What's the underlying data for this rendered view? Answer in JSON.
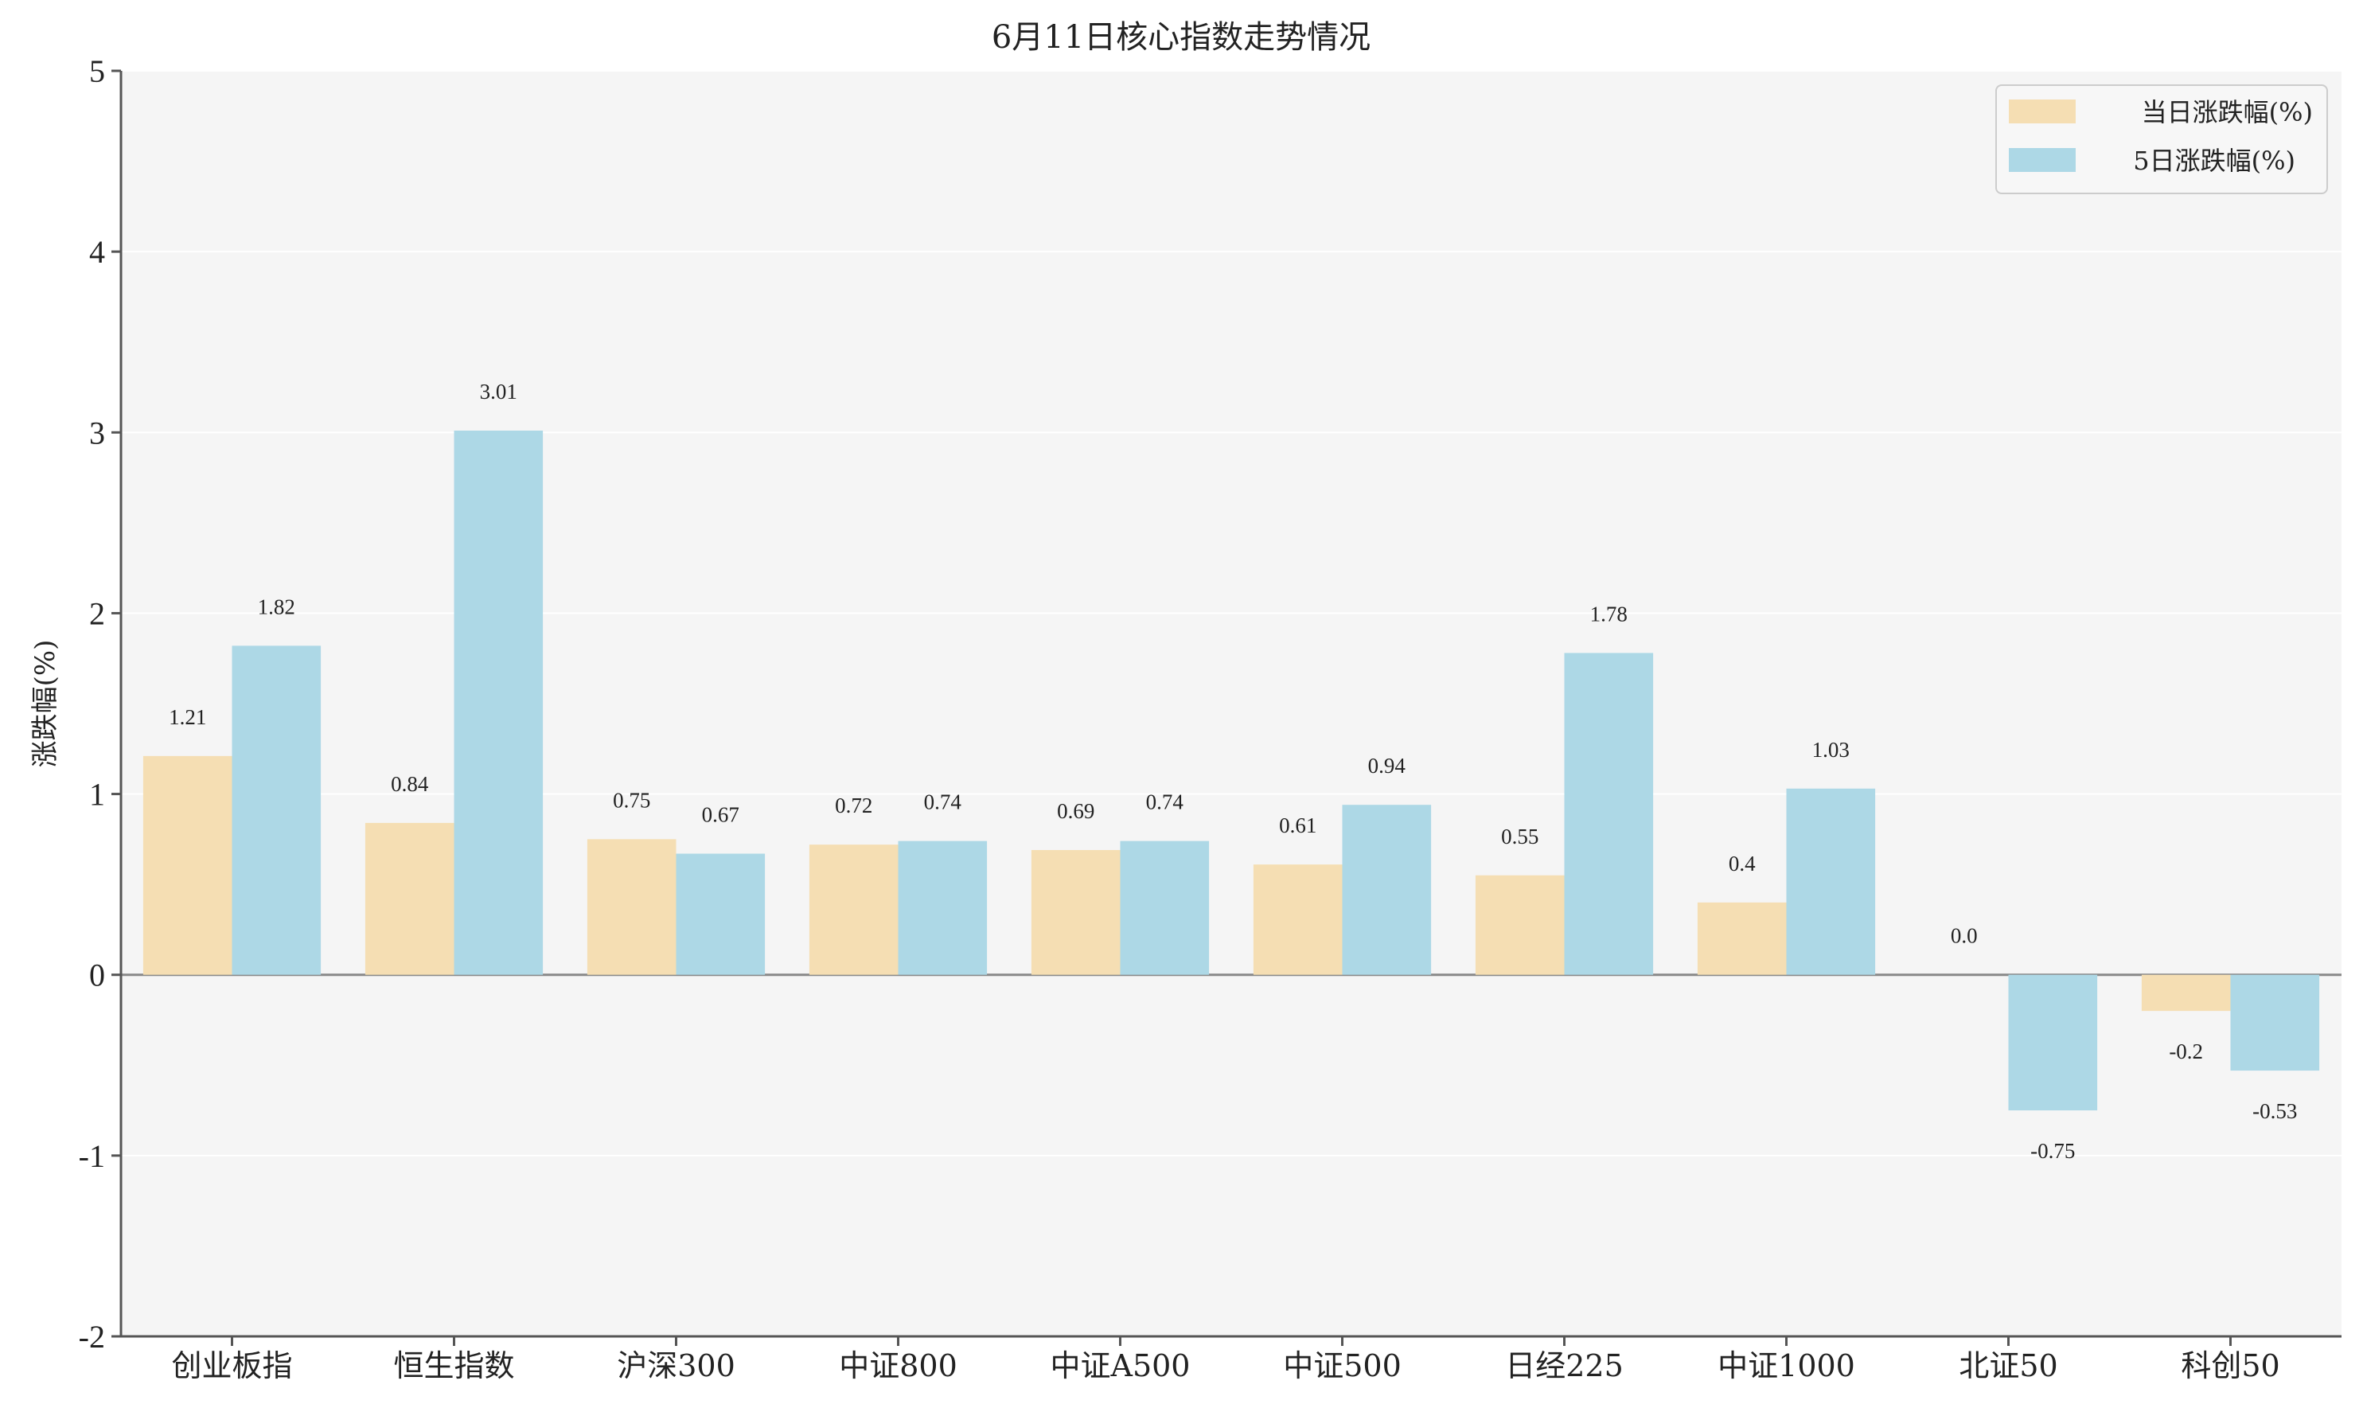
{
  "chart_data": {
    "type": "bar",
    "title": "6月11日核心指数走势情况",
    "ylabel": "涨跌幅(%)",
    "xlabel": "",
    "ylim": [
      -2,
      5
    ],
    "yticks": [
      "-2",
      "-1",
      "0",
      "1",
      "2",
      "3",
      "4",
      "5"
    ],
    "grid": true,
    "legend_position": "top-right",
    "categories": [
      "创业板指",
      "恒生指数",
      "沪深300",
      "中证800",
      "中证A500",
      "中证500",
      "日经225",
      "中证1000",
      "北证50",
      "科创50"
    ],
    "series": [
      {
        "name": "当日涨跌幅(%)",
        "color": "#f5deb3",
        "values": [
          1.21,
          0.84,
          0.75,
          0.72,
          0.69,
          0.61,
          0.55,
          0.4,
          0.0,
          -0.2
        ],
        "labels": [
          "1.21",
          "0.84",
          "0.75",
          "0.72",
          "0.69",
          "0.61",
          "0.55",
          "0.4",
          "0.0",
          "-0.2"
        ]
      },
      {
        "name": "5日涨跌幅(%)",
        "color": "#add8e6",
        "values": [
          1.82,
          3.01,
          0.67,
          0.74,
          0.74,
          0.94,
          1.78,
          1.03,
          -0.75,
          -0.53
        ],
        "labels": [
          "1.82",
          "3.01",
          "0.67",
          "0.74",
          "0.74",
          "0.94",
          "1.78",
          "1.03",
          "-0.75",
          "-0.53"
        ]
      }
    ],
    "colors": {
      "plot_background": "#f5f5f5",
      "axis": "#555555",
      "zero_line": "#888888"
    }
  }
}
